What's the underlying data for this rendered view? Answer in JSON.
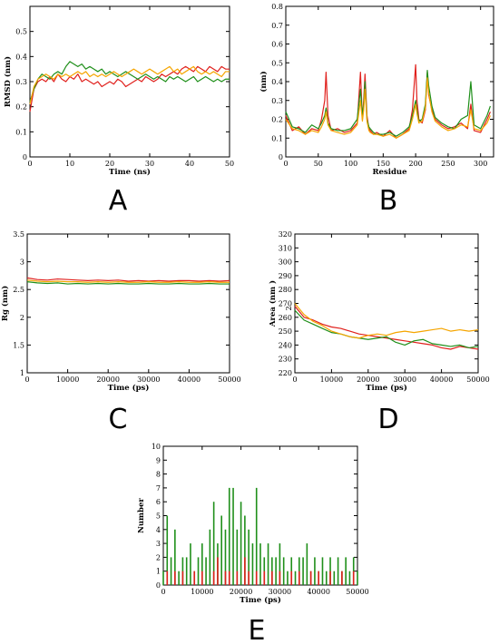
{
  "chart_data": [
    {
      "panel": "A",
      "type": "line",
      "xlabel": "Time (ns)",
      "ylabel": "RMSD (nm)",
      "xlim": [
        0,
        50
      ],
      "ylim": [
        0,
        0.6
      ],
      "xticks": [
        0,
        10,
        20,
        30,
        40,
        50
      ],
      "yticks": [
        0,
        0.1,
        0.2,
        0.3,
        0.4,
        0.5
      ],
      "x": [
        0,
        1,
        2,
        3,
        4,
        5,
        6,
        7,
        8,
        9,
        10,
        11,
        12,
        13,
        14,
        15,
        16,
        17,
        18,
        19,
        20,
        21,
        22,
        23,
        24,
        25,
        26,
        27,
        28,
        29,
        30,
        31,
        32,
        33,
        34,
        35,
        36,
        37,
        38,
        39,
        40,
        41,
        42,
        43,
        44,
        45,
        46,
        47,
        48,
        49,
        50
      ],
      "series": [
        {
          "color": "#e0201c",
          "values": [
            0.18,
            0.27,
            0.3,
            0.31,
            0.3,
            0.32,
            0.3,
            0.33,
            0.31,
            0.3,
            0.32,
            0.31,
            0.33,
            0.3,
            0.31,
            0.3,
            0.29,
            0.3,
            0.28,
            0.29,
            0.3,
            0.29,
            0.31,
            0.3,
            0.28,
            0.29,
            0.3,
            0.31,
            0.3,
            0.32,
            0.31,
            0.3,
            0.31,
            0.33,
            0.32,
            0.33,
            0.34,
            0.33,
            0.35,
            0.36,
            0.35,
            0.34,
            0.36,
            0.35,
            0.34,
            0.36,
            0.35,
            0.34,
            0.36,
            0.35,
            0.35
          ]
        },
        {
          "color": "#1f8f1a",
          "values": [
            0.22,
            0.27,
            0.31,
            0.33,
            0.32,
            0.31,
            0.33,
            0.34,
            0.33,
            0.36,
            0.38,
            0.37,
            0.36,
            0.37,
            0.35,
            0.36,
            0.35,
            0.34,
            0.35,
            0.33,
            0.34,
            0.33,
            0.32,
            0.33,
            0.34,
            0.33,
            0.32,
            0.31,
            0.32,
            0.33,
            0.32,
            0.31,
            0.32,
            0.31,
            0.3,
            0.32,
            0.31,
            0.32,
            0.31,
            0.3,
            0.31,
            0.32,
            0.3,
            0.31,
            0.32,
            0.31,
            0.3,
            0.31,
            0.3,
            0.31,
            0.31
          ]
        },
        {
          "color": "#f5a500",
          "values": [
            0.21,
            0.28,
            0.31,
            0.32,
            0.33,
            0.32,
            0.31,
            0.33,
            0.32,
            0.33,
            0.32,
            0.33,
            0.34,
            0.33,
            0.34,
            0.32,
            0.33,
            0.32,
            0.33,
            0.32,
            0.33,
            0.34,
            0.33,
            0.32,
            0.33,
            0.34,
            0.35,
            0.34,
            0.33,
            0.34,
            0.35,
            0.34,
            0.33,
            0.34,
            0.35,
            0.36,
            0.34,
            0.35,
            0.33,
            0.34,
            0.35,
            0.36,
            0.34,
            0.33,
            0.34,
            0.33,
            0.34,
            0.33,
            0.32,
            0.34,
            0.34
          ]
        }
      ]
    },
    {
      "panel": "B",
      "type": "line",
      "xlabel": "Residue",
      "ylabel": "(nm)",
      "xlim": [
        0,
        320
      ],
      "ylim": [
        0,
        0.8
      ],
      "xticks": [
        0,
        50,
        100,
        150,
        200,
        250,
        300
      ],
      "yticks": [
        0,
        0.1,
        0.2,
        0.3,
        0.4,
        0.5,
        0.6,
        0.7,
        0.8
      ],
      "x": [
        0,
        10,
        20,
        30,
        40,
        50,
        55,
        60,
        62,
        65,
        70,
        80,
        90,
        100,
        110,
        115,
        118,
        120,
        122,
        125,
        128,
        130,
        135,
        140,
        150,
        160,
        170,
        180,
        190,
        195,
        200,
        202,
        205,
        210,
        215,
        218,
        220,
        225,
        230,
        240,
        250,
        260,
        270,
        280,
        285,
        290,
        300,
        310,
        315
      ],
      "series": [
        {
          "color": "#e0201c",
          "values": [
            0.22,
            0.14,
            0.16,
            0.12,
            0.15,
            0.14,
            0.2,
            0.3,
            0.45,
            0.22,
            0.14,
            0.15,
            0.13,
            0.14,
            0.18,
            0.45,
            0.2,
            0.3,
            0.44,
            0.22,
            0.15,
            0.14,
            0.12,
            0.13,
            0.11,
            0.14,
            0.1,
            0.12,
            0.15,
            0.25,
            0.49,
            0.3,
            0.2,
            0.18,
            0.25,
            0.45,
            0.33,
            0.25,
            0.2,
            0.17,
            0.15,
            0.16,
            0.18,
            0.15,
            0.28,
            0.14,
            0.13,
            0.2,
            0.24
          ]
        },
        {
          "color": "#1f8f1a",
          "values": [
            0.24,
            0.16,
            0.15,
            0.13,
            0.17,
            0.15,
            0.18,
            0.22,
            0.26,
            0.18,
            0.15,
            0.14,
            0.14,
            0.15,
            0.2,
            0.36,
            0.22,
            0.28,
            0.4,
            0.2,
            0.16,
            0.15,
            0.13,
            0.12,
            0.12,
            0.13,
            0.11,
            0.13,
            0.16,
            0.22,
            0.3,
            0.25,
            0.19,
            0.2,
            0.28,
            0.46,
            0.38,
            0.27,
            0.21,
            0.18,
            0.16,
            0.15,
            0.2,
            0.22,
            0.4,
            0.17,
            0.15,
            0.22,
            0.27
          ]
        },
        {
          "color": "#f5a500",
          "values": [
            0.2,
            0.15,
            0.14,
            0.12,
            0.14,
            0.13,
            0.16,
            0.2,
            0.24,
            0.17,
            0.14,
            0.13,
            0.12,
            0.13,
            0.17,
            0.3,
            0.19,
            0.25,
            0.36,
            0.19,
            0.14,
            0.13,
            0.12,
            0.12,
            0.11,
            0.12,
            0.1,
            0.12,
            0.14,
            0.2,
            0.28,
            0.23,
            0.18,
            0.19,
            0.26,
            0.42,
            0.34,
            0.24,
            0.19,
            0.16,
            0.14,
            0.15,
            0.17,
            0.16,
            0.25,
            0.15,
            0.14,
            0.18,
            0.22
          ]
        }
      ]
    },
    {
      "panel": "C",
      "type": "line",
      "xlabel": "Time (ps)",
      "ylabel": "Rg (nm)",
      "xlim": [
        0,
        50000
      ],
      "ylim": [
        1,
        3.5
      ],
      "xticks": [
        0,
        10000,
        20000,
        30000,
        40000,
        50000
      ],
      "yticks": [
        1,
        1.5,
        2,
        2.5,
        3,
        3.5
      ],
      "x": [
        0,
        2500,
        5000,
        7500,
        10000,
        12500,
        15000,
        17500,
        20000,
        22500,
        25000,
        27500,
        30000,
        32500,
        35000,
        37500,
        40000,
        42500,
        45000,
        47500,
        50000
      ],
      "series": [
        {
          "color": "#e0201c",
          "values": [
            2.71,
            2.68,
            2.67,
            2.69,
            2.68,
            2.67,
            2.66,
            2.67,
            2.66,
            2.67,
            2.65,
            2.66,
            2.65,
            2.66,
            2.65,
            2.66,
            2.66,
            2.65,
            2.66,
            2.65,
            2.66
          ]
        },
        {
          "color": "#1f8f1a",
          "values": [
            2.64,
            2.62,
            2.61,
            2.62,
            2.6,
            2.61,
            2.6,
            2.61,
            2.6,
            2.61,
            2.6,
            2.6,
            2.61,
            2.6,
            2.6,
            2.61,
            2.6,
            2.6,
            2.61,
            2.6,
            2.6
          ]
        },
        {
          "color": "#f5a500",
          "values": [
            2.67,
            2.65,
            2.64,
            2.65,
            2.64,
            2.64,
            2.63,
            2.64,
            2.63,
            2.64,
            2.63,
            2.63,
            2.64,
            2.63,
            2.63,
            2.64,
            2.63,
            2.63,
            2.64,
            2.63,
            2.63
          ]
        }
      ]
    },
    {
      "panel": "D",
      "type": "line",
      "xlabel": "Time (ps)",
      "ylabel": "Area (nm )",
      "ylabel_superscript": "2",
      "xlim": [
        0,
        50000
      ],
      "ylim": [
        220,
        320
      ],
      "xticks": [
        0,
        10000,
        20000,
        30000,
        40000,
        50000
      ],
      "yticks": [
        220,
        230,
        240,
        250,
        260,
        270,
        280,
        290,
        300,
        310,
        320
      ],
      "x": [
        0,
        2500,
        5000,
        7500,
        10000,
        12500,
        15000,
        17500,
        20000,
        22500,
        25000,
        27500,
        30000,
        32500,
        35000,
        37500,
        40000,
        42500,
        45000,
        47500,
        50000
      ],
      "series": [
        {
          "color": "#e0201c",
          "values": [
            268,
            260,
            258,
            255,
            253,
            252,
            250,
            248,
            247,
            246,
            245,
            244,
            243,
            242,
            241,
            240,
            238,
            237,
            239,
            238,
            237
          ]
        },
        {
          "color": "#1f8f1a",
          "values": [
            265,
            258,
            255,
            252,
            249,
            248,
            246,
            245,
            244,
            245,
            246,
            242,
            240,
            243,
            244,
            241,
            240,
            239,
            240,
            238,
            239
          ]
        },
        {
          "color": "#f5a500",
          "values": [
            270,
            262,
            257,
            254,
            250,
            248,
            246,
            245,
            247,
            248,
            247,
            249,
            250,
            249,
            250,
            251,
            252,
            250,
            251,
            250,
            251
          ]
        }
      ]
    },
    {
      "panel": "E",
      "type": "bar",
      "xlabel": "Time (ps)",
      "ylabel": "Number",
      "xlim": [
        0,
        50000
      ],
      "ylim": [
        0,
        10
      ],
      "xticks": [
        0,
        10000,
        20000,
        30000,
        40000,
        50000
      ],
      "yticks": [
        0,
        1,
        2,
        3,
        4,
        5,
        6,
        7,
        8,
        9,
        10
      ],
      "x": [
        0,
        1000,
        2000,
        3000,
        4000,
        5000,
        6000,
        7000,
        8000,
        9000,
        10000,
        11000,
        12000,
        13000,
        14000,
        15000,
        16000,
        17000,
        18000,
        19000,
        20000,
        21000,
        22000,
        23000,
        24000,
        25000,
        26000,
        27000,
        28000,
        29000,
        30000,
        31000,
        32000,
        33000,
        34000,
        35000,
        36000,
        37000,
        38000,
        39000,
        40000,
        41000,
        42000,
        43000,
        44000,
        45000,
        46000,
        47000,
        48000,
        49000,
        50000
      ],
      "series": [
        {
          "color": "#1f8f1a",
          "values": [
            1,
            5,
            2,
            4,
            1,
            2,
            2,
            3,
            1,
            2,
            3,
            2,
            4,
            6,
            3,
            5,
            4,
            7,
            7,
            4,
            6,
            5,
            4,
            3,
            7,
            3,
            2,
            3,
            2,
            2,
            3,
            2,
            1,
            2,
            1,
            2,
            2,
            3,
            1,
            2,
            1,
            2,
            1,
            2,
            1,
            2,
            1,
            2,
            1,
            2,
            1
          ]
        },
        {
          "color": "#e0201c",
          "values": [
            0,
            1,
            0,
            1,
            0,
            1,
            0,
            0,
            1,
            0,
            1,
            0,
            0,
            1,
            2,
            0,
            1,
            1,
            0,
            1,
            0,
            2,
            1,
            0,
            1,
            0,
            1,
            0,
            1,
            0,
            1,
            0,
            0,
            1,
            0,
            1,
            0,
            0,
            1,
            0,
            1,
            0,
            0,
            1,
            0,
            0,
            1,
            0,
            0,
            1,
            0
          ]
        }
      ]
    }
  ],
  "panel_letters": {
    "A": "A",
    "B": "B",
    "C": "C",
    "D": "D",
    "E": "E"
  }
}
